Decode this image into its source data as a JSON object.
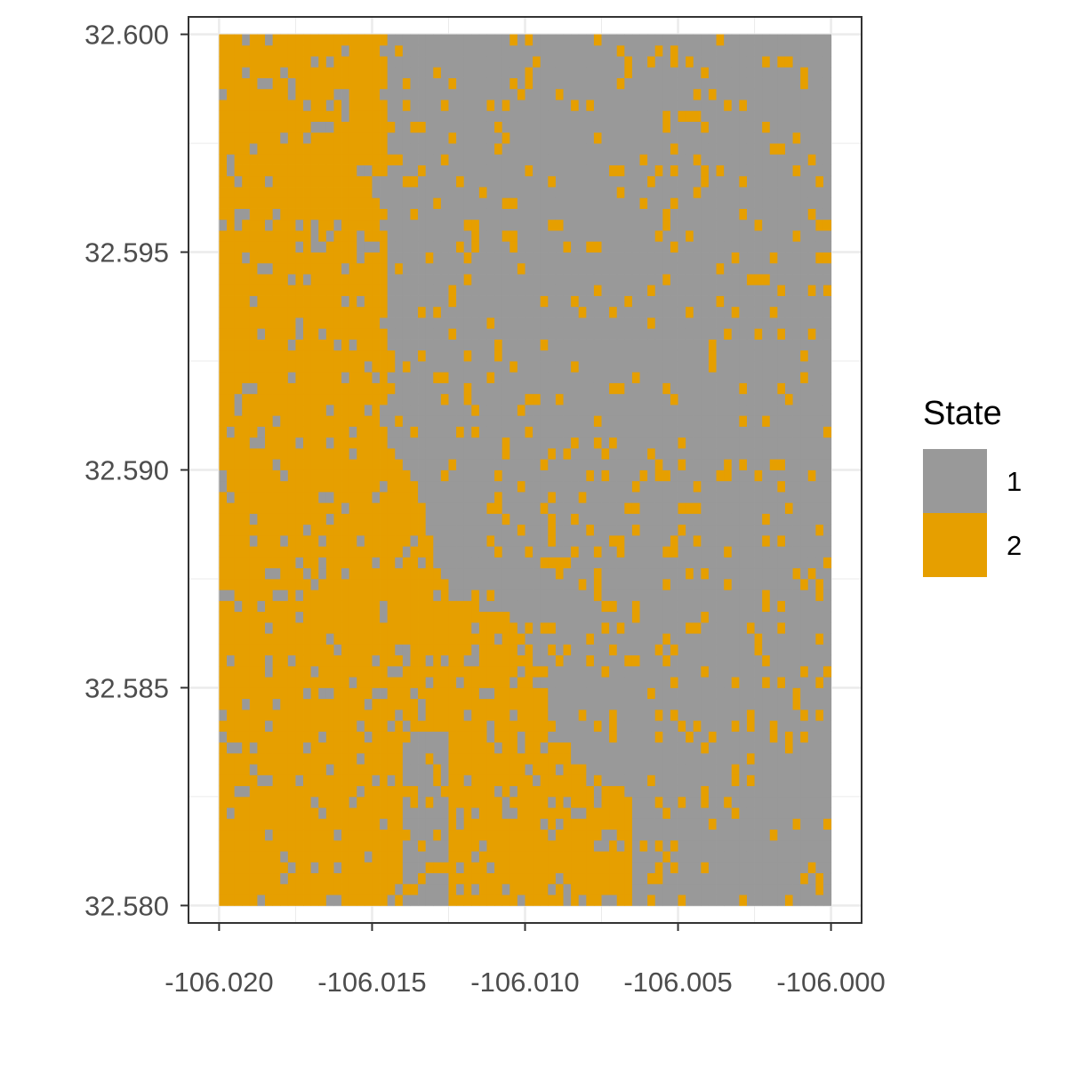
{
  "chart_data": {
    "type": "heatmap",
    "title": "",
    "xlabel": "",
    "ylabel": "",
    "x_ticks": [
      -106.02,
      -106.015,
      -106.01,
      -106.005,
      -106.0
    ],
    "x_tick_labels": [
      "-106.020",
      "-106.015",
      "-106.010",
      "-106.005",
      "-106.000"
    ],
    "y_ticks": [
      32.58,
      32.585,
      32.59,
      32.595,
      32.6
    ],
    "y_tick_labels": [
      "32.580",
      "32.585",
      "32.590",
      "32.595",
      "32.600"
    ],
    "xlim": [
      -106.021,
      -105.999
    ],
    "ylim": [
      32.5796,
      32.6004
    ],
    "grid": true,
    "legend": {
      "title": "State",
      "placement": "right",
      "entries": [
        {
          "label": "1",
          "color": "#999999"
        },
        {
          "label": "2",
          "color": "#E69F00"
        }
      ]
    },
    "cell_size_deg": 0.00025,
    "grid_dims": {
      "cols": 80,
      "rows": 80
    },
    "raster_extent": {
      "x": [
        -106.02,
        -106.0
      ],
      "y": [
        32.58,
        32.6
      ]
    },
    "regions": [
      {
        "state": "2",
        "x": [
          -106.02,
          -106.0145
        ],
        "y": [
          32.58,
          32.6
        ]
      },
      {
        "state": "1",
        "x": [
          -106.0065,
          -106.0
        ],
        "y": [
          32.58,
          32.5865
        ]
      },
      {
        "state": "1",
        "x": [
          -106.014,
          -106.0125
        ],
        "y": [
          32.58,
          32.584
        ]
      }
    ]
  }
}
